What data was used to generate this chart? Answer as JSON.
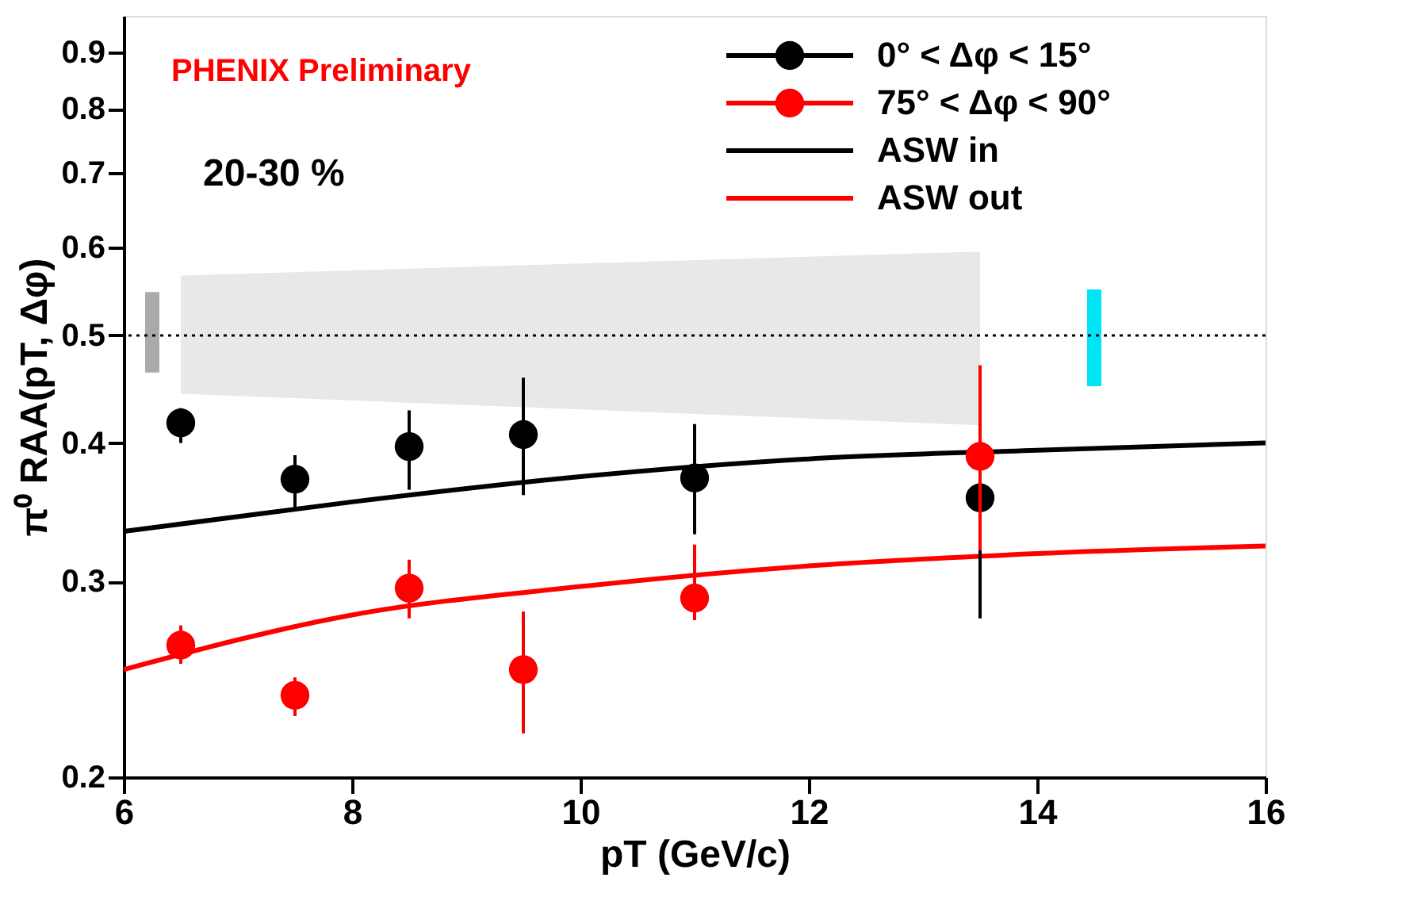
{
  "chart_data": {
    "type": "scatter",
    "xlabel": "pT (GeV/c)",
    "ylabel": "π⁰ RAA(pT, Δφ)",
    "annotations": [
      "PHENIX Preliminary",
      "20-30 %"
    ],
    "xlim": [
      6,
      16
    ],
    "xticks": [
      6,
      8,
      10,
      12,
      14,
      16
    ],
    "ylim": [
      0.2,
      0.97
    ],
    "yticks": [
      0.2,
      0.3,
      0.4,
      0.5,
      0.6,
      0.7,
      0.8,
      0.9
    ],
    "log": "y",
    "legend": "top right",
    "grid": false,
    "ref_lines": [
      {
        "axis": "y",
        "value": 0.5,
        "label": null,
        "line_style": "dotted",
        "color": "#000000"
      }
    ],
    "series": [
      {
        "type": "area",
        "color": "#e6e6e6",
        "x": [
          6.5,
          13.5
        ],
        "values": [
          null,
          null
        ],
        "lower": [
          0.443,
          0.415
        ],
        "upper": [
          0.566,
          0.595
        ]
      },
      {
        "type": "bar",
        "color": "#aaaaaa",
        "x": [
          6.25
        ],
        "base": [
          0.463
        ],
        "values": [
          0.084
        ]
      },
      {
        "type": "bar",
        "color": "#00e5f5",
        "x": [
          14.5
        ],
        "base": [
          0.45
        ],
        "values": [
          0.1
        ]
      },
      {
        "type": "line",
        "name": "ASW in",
        "color": "#000000",
        "x": [
          6,
          8,
          10,
          12,
          14,
          16
        ],
        "values": [
          0.333,
          0.354,
          0.373,
          0.387,
          0.394,
          0.4
        ]
      },
      {
        "type": "line",
        "name": "ASW out",
        "color": "#ff0000",
        "x": [
          6,
          8,
          10,
          12,
          14,
          16
        ],
        "values": [
          0.25,
          0.28,
          0.297,
          0.31,
          0.318,
          0.323
        ]
      },
      {
        "marker": "circle",
        "name": "0° < Δφ < 15°",
        "color": "#000000",
        "x": [
          6.5,
          7.5,
          8.5,
          9.5,
          11,
          13.5
        ],
        "values": [
          0.417,
          0.371,
          0.397,
          0.407,
          0.372,
          0.357
        ],
        "errors": [
          [
            0.4,
            0.43
          ],
          [
            0.35,
            0.39
          ],
          [
            0.363,
            0.428
          ],
          [
            0.359,
            0.458
          ],
          [
            0.331,
            0.416
          ],
          [
            0.278,
            0.447
          ]
        ]
      },
      {
        "marker": "circle",
        "name": "75° < Δφ < 90°",
        "color": "#ff0000",
        "x": [
          6.5,
          7.5,
          8.5,
          9.5,
          11,
          13.5
        ],
        "values": [
          0.263,
          0.237,
          0.296,
          0.25,
          0.29,
          0.389
        ],
        "errors": [
          [
            0.253,
            0.274
          ],
          [
            0.227,
            0.246
          ],
          [
            0.278,
            0.314
          ],
          [
            0.219,
            0.282
          ],
          [
            0.277,
            0.324
          ],
          [
            0.32,
            0.47
          ]
        ]
      }
    ]
  }
}
